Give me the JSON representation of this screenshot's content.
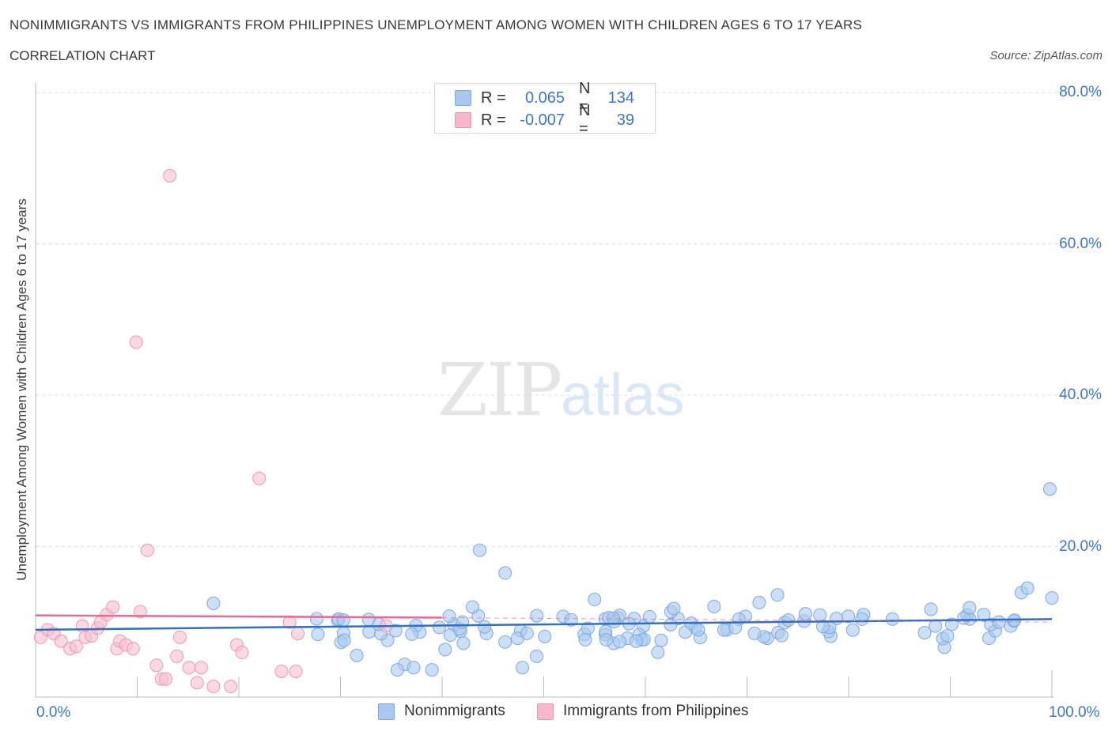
{
  "title": "NONIMMIGRANTS VS IMMIGRANTS FROM PHILIPPINES UNEMPLOYMENT AMONG WOMEN WITH CHILDREN AGES 6 TO 17 YEARS",
  "subtitle": "CORRELATION CHART",
  "source": "Source: ZipAtlas.com",
  "watermark": {
    "zip": "ZIP",
    "atlas": "atlas"
  },
  "legend": {
    "r_label": "R =",
    "n_label": "N =",
    "rows": [
      {
        "r": "0.065",
        "n": "134",
        "color": "#a9c8f0"
      },
      {
        "r": "-0.007",
        "n": "39",
        "color": "#f6b8c8"
      }
    ]
  },
  "colors": {
    "blue_point": "#aac9f0",
    "blue_edge": "#7ea9e0",
    "blue_line": "#2f6fc4",
    "pink_point": "#f7bfd0",
    "pink_edge": "#ec98b2",
    "pink_line": "#e66a92",
    "axis_text": "#3f76c9"
  },
  "chart_data": {
    "type": "scatter",
    "title": "NONIMMIGRANTS VS IMMIGRANTS FROM PHILIPPINES UNEMPLOYMENT AMONG WOMEN WITH CHILDREN AGES 6 TO 17 YEARS",
    "xlabel": "",
    "ylabel": "Unemployment Among Women with Children Ages 6 to 17 years",
    "xlim": [
      0,
      100
    ],
    "ylim": [
      0,
      80
    ],
    "x_tick_labels": [
      "0.0%",
      "100.0%"
    ],
    "y_tick_values": [
      20,
      40,
      60,
      80
    ],
    "y_tick_labels": [
      "20.0%",
      "40.0%",
      "60.0%",
      "80.0%"
    ],
    "grid": true,
    "legend_position": "bottom",
    "series": [
      {
        "name": "Nonimmigrants",
        "r": 0.065,
        "n": 134,
        "trend": [
          [
            0,
            9.0
          ],
          [
            100,
            10.4
          ]
        ],
        "points": [
          [
            17.5,
            12.5
          ],
          [
            31.6,
            5.6
          ],
          [
            35.6,
            3.7
          ],
          [
            37.2,
            4.0
          ],
          [
            39.0,
            3.7
          ],
          [
            40.7,
            10.8
          ],
          [
            42.0,
            10.0
          ],
          [
            43.7,
            19.5
          ],
          [
            46.2,
            16.5
          ],
          [
            43.0,
            12.0
          ],
          [
            47.9,
            4.0
          ],
          [
            49.3,
            5.5
          ],
          [
            52.7,
            10.3
          ],
          [
            55.0,
            13.0
          ],
          [
            59.1,
            7.5
          ],
          [
            58.4,
            9.8
          ],
          [
            62.8,
            11.8
          ],
          [
            65.2,
            9.0
          ],
          [
            71.2,
            12.6
          ],
          [
            73.0,
            13.6
          ],
          [
            81.3,
            10.4
          ],
          [
            88.1,
            11.7
          ],
          [
            91.9,
            11.9
          ],
          [
            93.3,
            11.0
          ],
          [
            94.0,
            9.7
          ],
          [
            94.8,
            10.0
          ],
          [
            97.0,
            13.9
          ],
          [
            97.6,
            14.5
          ],
          [
            99.8,
            27.6
          ],
          [
            100.0,
            13.2
          ]
        ]
      },
      {
        "name": "Immigrants from Philippines",
        "r": -0.007,
        "n": 39,
        "trend": [
          [
            0,
            10.9
          ],
          [
            40,
            10.6
          ]
        ],
        "points": [
          [
            0.5,
            8.0
          ],
          [
            1.2,
            9.0
          ],
          [
            1.8,
            8.5
          ],
          [
            2.5,
            7.5
          ],
          [
            3.4,
            6.5
          ],
          [
            4.0,
            6.8
          ],
          [
            4.6,
            9.5
          ],
          [
            4.9,
            8.0
          ],
          [
            5.5,
            8.2
          ],
          [
            6.1,
            9.2
          ],
          [
            6.4,
            10.0
          ],
          [
            7.0,
            11.0
          ],
          [
            7.6,
            12.0
          ],
          [
            8.0,
            6.5
          ],
          [
            8.3,
            7.5
          ],
          [
            8.9,
            7.0
          ],
          [
            9.6,
            6.5
          ],
          [
            9.9,
            47.0
          ],
          [
            10.3,
            11.4
          ],
          [
            11.0,
            19.5
          ],
          [
            11.9,
            4.3
          ],
          [
            12.4,
            2.5
          ],
          [
            12.8,
            2.5
          ],
          [
            13.9,
            5.5
          ],
          [
            14.2,
            8.0
          ],
          [
            15.1,
            4.0
          ],
          [
            15.9,
            2.0
          ],
          [
            16.3,
            4.0
          ],
          [
            17.5,
            1.5
          ],
          [
            19.2,
            1.5
          ],
          [
            19.8,
            7.0
          ],
          [
            20.3,
            6.0
          ],
          [
            22.0,
            29.0
          ],
          [
            24.2,
            3.5
          ],
          [
            25.0,
            10.0
          ],
          [
            25.6,
            3.5
          ],
          [
            25.8,
            8.5
          ],
          [
            34.5,
            9.5
          ],
          [
            13.2,
            69.0
          ]
        ]
      }
    ]
  }
}
